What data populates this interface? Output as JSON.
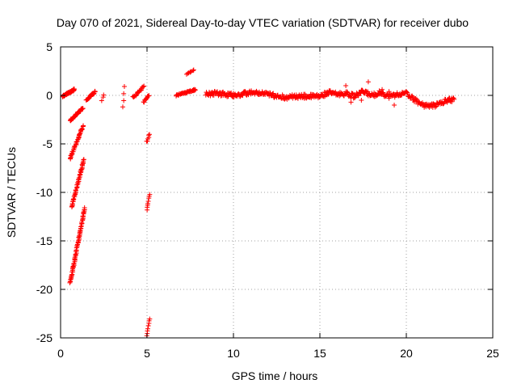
{
  "chart_data": {
    "type": "scatter",
    "title": "Day 070 of 2021, Sidereal Day-to-day VTEC variation (SDTVAR) for receiver dubo",
    "xlabel": "GPS time / hours",
    "ylabel": "SDTVAR / TECUs",
    "xlim": [
      0,
      25
    ],
    "ylim": [
      -25,
      5
    ],
    "xticks": [
      0,
      5,
      10,
      15,
      20,
      25
    ],
    "yticks": [
      5,
      0,
      -5,
      -10,
      -15,
      -20,
      -25
    ],
    "grid": true,
    "marker": "+",
    "series_color": "#ff0000",
    "series": [
      {
        "name": "SDTVAR",
        "clusters": [
          {
            "x": [
              0.1,
              0.8
            ],
            "y": [
              -0.1,
              0.6
            ],
            "n": 50
          },
          {
            "x": [
              0.55,
              1.3
            ],
            "y": [
              -2.6,
              -1.3
            ],
            "n": 40
          },
          {
            "x": [
              0.55,
              1.3
            ],
            "y": [
              -6.5,
              -3.2
            ],
            "n": 40
          },
          {
            "x": [
              0.65,
              1.35
            ],
            "y": [
              -11.5,
              -6.6
            ],
            "n": 50
          },
          {
            "x": [
              0.55,
              1.4
            ],
            "y": [
              -19.4,
              -11.6
            ],
            "n": 70
          },
          {
            "x": [
              1.5,
              2.0
            ],
            "y": [
              -0.5,
              0.4
            ],
            "n": 25
          },
          {
            "x": [
              2.4,
              2.5
            ],
            "y": [
              -0.6,
              0.1
            ],
            "n": 3
          },
          {
            "x": [
              3.6,
              3.7
            ],
            "y": [
              -1.2,
              0.9
            ],
            "n": 4
          },
          {
            "x": [
              4.2,
              4.8
            ],
            "y": [
              -0.2,
              0.9
            ],
            "n": 20
          },
          {
            "x": [
              4.8,
              5.1
            ],
            "y": [
              -0.7,
              0.0
            ],
            "n": 10
          },
          {
            "x": [
              5.0,
              5.15
            ],
            "y": [
              -4.8,
              -4.0
            ],
            "n": 6
          },
          {
            "x": [
              5.0,
              5.15
            ],
            "y": [
              -11.8,
              -10.2
            ],
            "n": 8
          },
          {
            "x": [
              5.0,
              5.15
            ],
            "y": [
              -24.8,
              -23.0
            ],
            "n": 8
          },
          {
            "x": [
              6.7,
              7.8
            ],
            "y": [
              0.0,
              0.6
            ],
            "n": 40
          },
          {
            "x": [
              7.3,
              7.7
            ],
            "y": [
              2.2,
              2.6
            ],
            "n": 8
          }
        ],
        "path": {
          "x": [
            8.4,
            9.0,
            10.0,
            11.0,
            12.0,
            13.0,
            14.0,
            15.0,
            15.5,
            16.0,
            16.5,
            17.0,
            17.5,
            18.0,
            18.5,
            19.0,
            19.5,
            20.0,
            20.5,
            21.0,
            21.5,
            22.0,
            22.5,
            22.8
          ],
          "y": [
            0.1,
            0.2,
            0.0,
            0.3,
            0.1,
            -0.2,
            -0.1,
            -0.1,
            0.3,
            0.1,
            0.2,
            -0.1,
            0.4,
            0.0,
            0.3,
            -0.1,
            0.1,
            0.2,
            -0.5,
            -1.0,
            -1.1,
            -0.8,
            -0.4,
            -0.5
          ]
        },
        "outliers": [
          {
            "x": 16.5,
            "y": 1.0
          },
          {
            "x": 16.8,
            "y": -0.7
          },
          {
            "x": 17.8,
            "y": 1.4
          },
          {
            "x": 17.4,
            "y": -0.5
          },
          {
            "x": 19.0,
            "y": 0.4
          },
          {
            "x": 19.3,
            "y": -1.0
          },
          {
            "x": 18.6,
            "y": 0.6
          }
        ]
      }
    ]
  }
}
